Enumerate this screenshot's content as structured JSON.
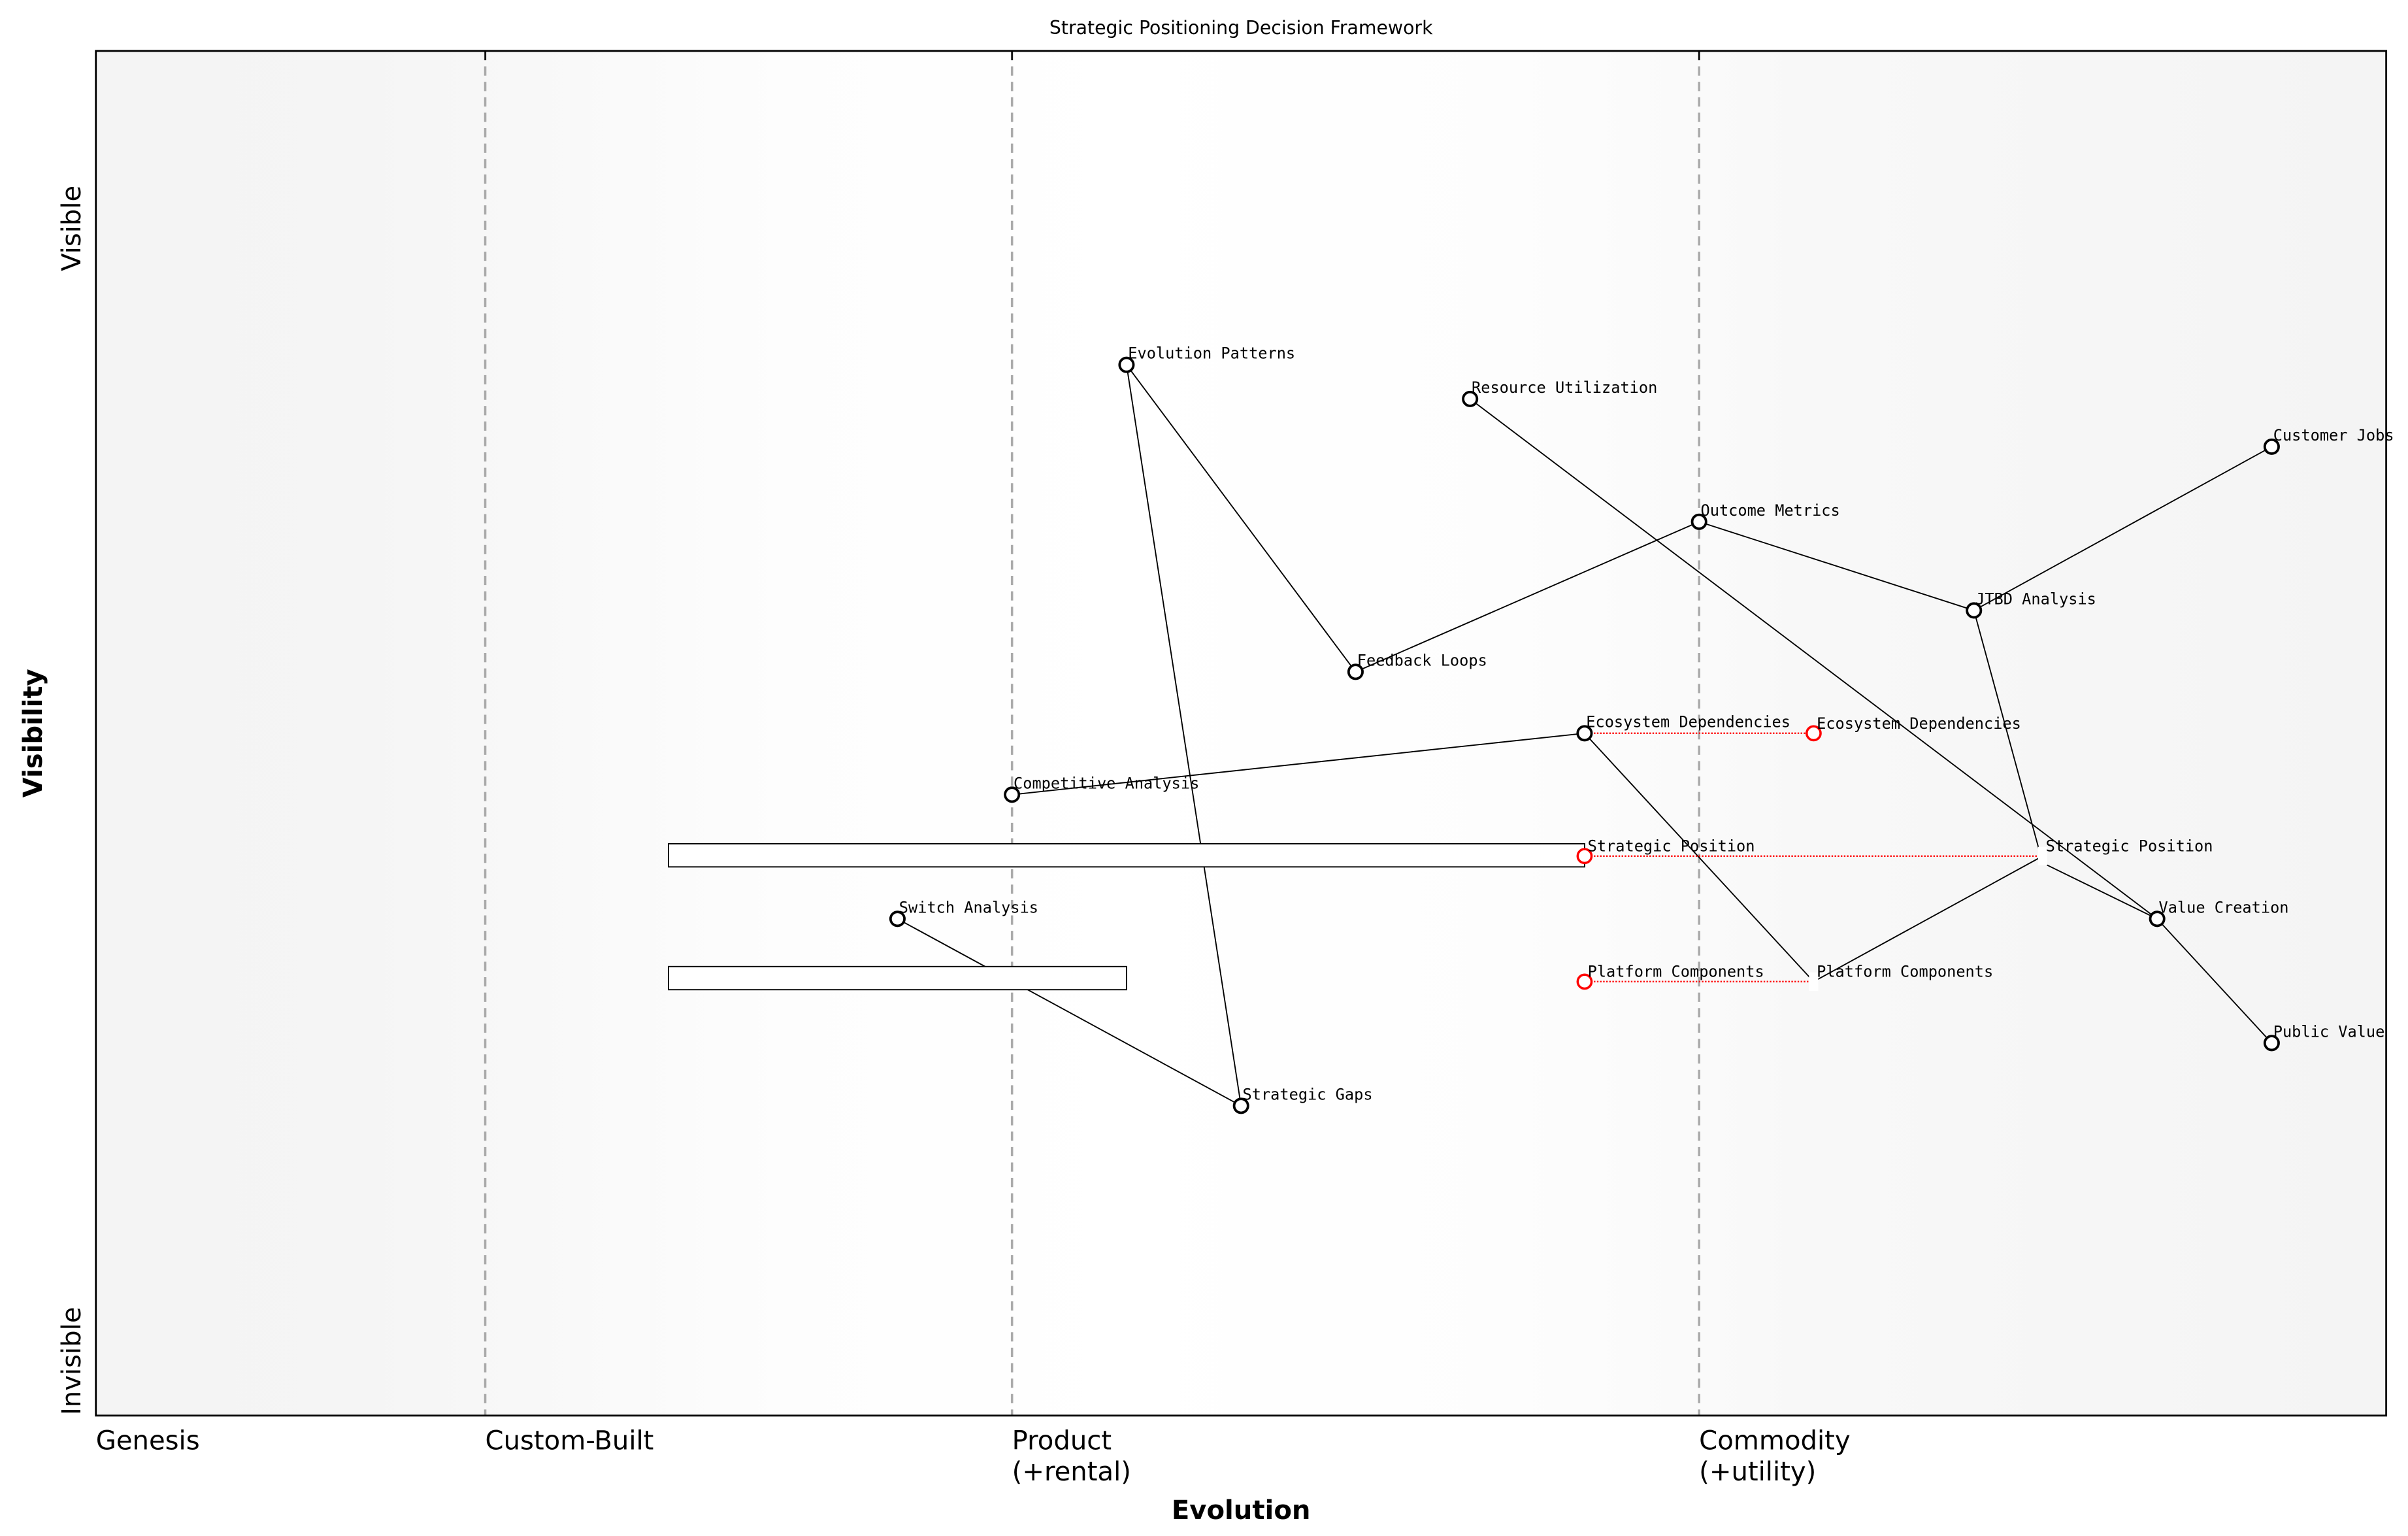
{
  "chart_data": {
    "type": "scatter",
    "title": "Strategic Positioning Decision Framework",
    "xlabel": "Evolution",
    "ylabel": "Visibility",
    "xlim": [
      0,
      1
    ],
    "ylim": [
      0,
      1
    ],
    "grid": false,
    "x_stage_labels": [
      {
        "x": 0.0,
        "label": "Genesis"
      },
      {
        "x": 0.17,
        "label": "Custom-Built"
      },
      {
        "x": 0.4,
        "label": "Product\n(+rental)"
      },
      {
        "x": 0.7,
        "label": "Commodity\n(+utility)"
      }
    ],
    "stage_dividers": [
      0.17,
      0.4,
      0.7
    ],
    "y_labels": [
      {
        "y": 0.87,
        "label": "Visible"
      },
      {
        "y": 0.04,
        "label": "Invisible"
      }
    ],
    "components": [
      {
        "name": "Evolution Patterns",
        "x": 0.45,
        "y": 0.77
      },
      {
        "name": "Resource Utilization",
        "x": 0.6,
        "y": 0.745
      },
      {
        "name": "Customer Jobs",
        "x": 0.95,
        "y": 0.71
      },
      {
        "name": "Outcome Metrics",
        "x": 0.7,
        "y": 0.655
      },
      {
        "name": "JTBD Analysis",
        "x": 0.82,
        "y": 0.59
      },
      {
        "name": "Feedback Loops",
        "x": 0.55,
        "y": 0.545
      },
      {
        "name": "Ecosystem Dependencies",
        "x": 0.65,
        "y": 0.5
      },
      {
        "name": "Competitive Analysis",
        "x": 0.4,
        "y": 0.455
      },
      {
        "name": "Switch Analysis",
        "x": 0.35,
        "y": 0.364
      },
      {
        "name": "Value Creation",
        "x": 0.9,
        "y": 0.364
      },
      {
        "name": "Public Value",
        "x": 0.95,
        "y": 0.273
      },
      {
        "name": "Strategic Gaps",
        "x": 0.5,
        "y": 0.227
      }
    ],
    "evolving_components": [
      {
        "name": "Ecosystem Dependencies",
        "x": 0.65,
        "y": 0.5,
        "target_x": 0.75,
        "target_label": "Ecosystem Dependencies",
        "target_marker": "circle"
      },
      {
        "name": "Strategic Position",
        "x": 0.65,
        "y": 0.41,
        "target_x": 0.85,
        "target_label": "Strategic Position",
        "target_marker": "square"
      },
      {
        "name": "Platform Components",
        "x": 0.65,
        "y": 0.318,
        "target_x": 0.75,
        "target_label": "Platform Components",
        "target_marker": "square"
      }
    ],
    "links": [
      [
        [
          0.45,
          0.77
        ],
        [
          0.55,
          0.545
        ]
      ],
      [
        [
          0.45,
          0.77
        ],
        [
          0.5,
          0.227
        ]
      ],
      [
        [
          0.55,
          0.545
        ],
        [
          0.7,
          0.655
        ]
      ],
      [
        [
          0.7,
          0.655
        ],
        [
          0.82,
          0.59
        ]
      ],
      [
        [
          0.82,
          0.59
        ],
        [
          0.95,
          0.71
        ]
      ],
      [
        [
          0.82,
          0.59
        ],
        [
          0.85,
          0.405
        ]
      ],
      [
        [
          0.6,
          0.745
        ],
        [
          0.9,
          0.364
        ]
      ],
      [
        [
          0.9,
          0.364
        ],
        [
          0.95,
          0.273
        ]
      ],
      [
        [
          0.85,
          0.405
        ],
        [
          0.9,
          0.364
        ]
      ],
      [
        [
          0.4,
          0.455
        ],
        [
          0.65,
          0.5
        ]
      ],
      [
        [
          0.65,
          0.5
        ],
        [
          0.75,
          0.318
        ]
      ],
      [
        [
          0.75,
          0.318
        ],
        [
          0.85,
          0.41
        ]
      ],
      [
        [
          0.35,
          0.364
        ],
        [
          0.5,
          0.227
        ]
      ]
    ],
    "bars": [
      {
        "x_start": 0.25,
        "x_end": 0.65,
        "y": 0.41
      },
      {
        "x_start": 0.25,
        "x_end": 0.45,
        "y": 0.32
      }
    ],
    "colors": {
      "component": "#000000",
      "evolving": "#ff0000",
      "divider": "#aaaaaa",
      "band_edge": "#f4f4f4",
      "band_center": "#ffffff"
    }
  }
}
